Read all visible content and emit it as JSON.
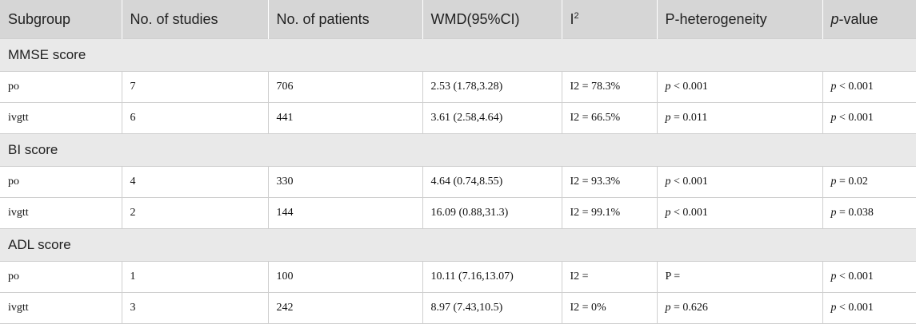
{
  "headers": {
    "subgroup": "Subgroup",
    "studies": "No. of studies",
    "patients": "No. of patients",
    "wmd": "WMD(95%CI)",
    "i2": "I",
    "i2_sup": "2",
    "pheterogeneity": "P-heterogeneity",
    "pvalue_italic": "p",
    "pvalue_rest": "-value"
  },
  "groups": [
    {
      "label": "MMSE score",
      "rows": [
        {
          "subgroup": "po",
          "studies": "7",
          "patients": "706",
          "wmd": "2.53 (1.78,3.28)",
          "i2": "I2 = 78.3%",
          "ph_p": "p",
          "ph_rest": " < 0.001",
          "pv_p": "p",
          "pv_rest": " < 0.001"
        },
        {
          "subgroup": "ivgtt",
          "studies": "6",
          "patients": "441",
          "wmd": "3.61 (2.58,4.64)",
          "i2": "I2 = 66.5%",
          "ph_p": "p",
          "ph_rest": " = 0.011",
          "pv_p": "p",
          "pv_rest": " < 0.001"
        }
      ]
    },
    {
      "label": "BI score",
      "rows": [
        {
          "subgroup": "po",
          "studies": "4",
          "patients": "330",
          "wmd": "4.64 (0.74,8.55)",
          "i2": "I2 = 93.3%",
          "ph_p": "p",
          "ph_rest": " < 0.001",
          "pv_p": "p",
          "pv_rest": " = 0.02"
        },
        {
          "subgroup": "ivgtt",
          "studies": "2",
          "patients": "144",
          "wmd": "16.09 (0.88,31.3)",
          "i2": "I2 = 99.1%",
          "ph_p": "p",
          "ph_rest": " < 0.001",
          "pv_p": "p",
          "pv_rest": " = 0.038"
        }
      ]
    },
    {
      "label": "ADL score",
      "rows": [
        {
          "subgroup": "po",
          "studies": "1",
          "patients": "100",
          "wmd": "10.11 (7.16,13.07)",
          "i2": "I2 =",
          "ph_p": "",
          "ph_rest": "P =",
          "pv_p": "p",
          "pv_rest": " < 0.001"
        },
        {
          "subgroup": "ivgtt",
          "studies": "3",
          "patients": "242",
          "wmd": "8.97 (7.43,10.5)",
          "i2": "I2 = 0%",
          "ph_p": "p",
          "ph_rest": " = 0.626",
          "pv_p": "p",
          "pv_rest": " < 0.001"
        }
      ]
    }
  ]
}
